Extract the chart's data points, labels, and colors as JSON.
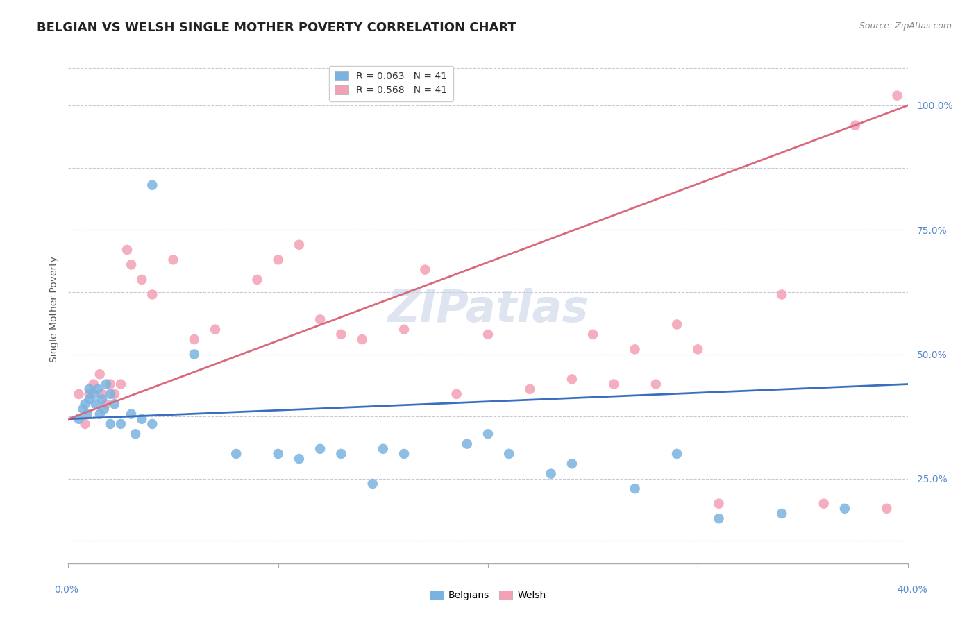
{
  "title": "BELGIAN VS WELSH SINGLE MOTHER POVERTY CORRELATION CHART",
  "source": "Source: ZipAtlas.com",
  "ylabel": "Single Mother Poverty",
  "ytick_labels": [
    "25.0%",
    "50.0%",
    "75.0%",
    "100.0%"
  ],
  "ytick_values": [
    0.25,
    0.5,
    0.75,
    1.0
  ],
  "xlim": [
    0.0,
    0.4
  ],
  "ylim": [
    0.08,
    1.1
  ],
  "blue_color": "#7ab3e0",
  "pink_color": "#f4a0b5",
  "blue_line_color": "#3a6fbf",
  "pink_line_color": "#d9687a",
  "background_color": "#ffffff",
  "grid_color": "#c8c8d8",
  "title_fontsize": 13,
  "axis_label_fontsize": 10,
  "tick_fontsize": 10,
  "legend_fontsize": 10,
  "source_fontsize": 9,
  "belgian_x": [
    0.005,
    0.007,
    0.008,
    0.009,
    0.01,
    0.01,
    0.012,
    0.013,
    0.014,
    0.015,
    0.016,
    0.017,
    0.018,
    0.02,
    0.02,
    0.022,
    0.025,
    0.03,
    0.032,
    0.035,
    0.04,
    0.04,
    0.06,
    0.08,
    0.1,
    0.11,
    0.12,
    0.13,
    0.145,
    0.15,
    0.16,
    0.19,
    0.2,
    0.21,
    0.23,
    0.24,
    0.27,
    0.29,
    0.31,
    0.34,
    0.37
  ],
  "belgian_y": [
    0.37,
    0.39,
    0.4,
    0.38,
    0.41,
    0.43,
    0.42,
    0.4,
    0.43,
    0.38,
    0.41,
    0.39,
    0.44,
    0.42,
    0.36,
    0.4,
    0.36,
    0.38,
    0.34,
    0.37,
    0.36,
    0.84,
    0.5,
    0.3,
    0.3,
    0.29,
    0.31,
    0.3,
    0.24,
    0.31,
    0.3,
    0.32,
    0.34,
    0.3,
    0.26,
    0.28,
    0.23,
    0.3,
    0.17,
    0.18,
    0.19
  ],
  "welsh_x": [
    0.005,
    0.008,
    0.01,
    0.012,
    0.015,
    0.016,
    0.018,
    0.02,
    0.022,
    0.025,
    0.028,
    0.03,
    0.035,
    0.04,
    0.05,
    0.06,
    0.07,
    0.09,
    0.1,
    0.11,
    0.12,
    0.13,
    0.14,
    0.16,
    0.17,
    0.185,
    0.2,
    0.22,
    0.24,
    0.25,
    0.26,
    0.27,
    0.28,
    0.29,
    0.3,
    0.31,
    0.34,
    0.36,
    0.375,
    0.39,
    0.395
  ],
  "welsh_y": [
    0.42,
    0.36,
    0.42,
    0.44,
    0.46,
    0.42,
    0.4,
    0.44,
    0.42,
    0.44,
    0.71,
    0.68,
    0.65,
    0.62,
    0.69,
    0.53,
    0.55,
    0.65,
    0.69,
    0.72,
    0.57,
    0.54,
    0.53,
    0.55,
    0.67,
    0.42,
    0.54,
    0.43,
    0.45,
    0.54,
    0.44,
    0.51,
    0.44,
    0.56,
    0.51,
    0.2,
    0.62,
    0.2,
    0.96,
    0.19,
    1.02
  ],
  "blue_line_x": [
    0.0,
    0.4
  ],
  "blue_line_y": [
    0.37,
    0.44
  ],
  "pink_line_x": [
    0.0,
    0.4
  ],
  "pink_line_y": [
    0.37,
    1.0
  ]
}
